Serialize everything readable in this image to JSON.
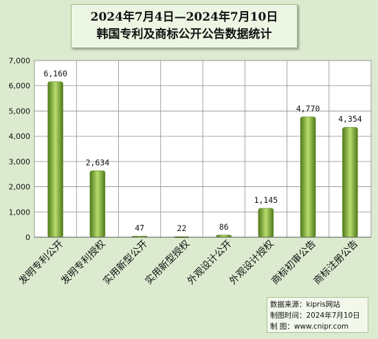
{
  "title_lines": [
    "2024年7月4日—2024年7月10日",
    "韩国专利及商标公开公告数据统计"
  ],
  "source": {
    "line1": "数据来源：kipris网站",
    "line2": "制图时间：2024年7月10日",
    "line3": "制    图：www.cnipr.com"
  },
  "colors": {
    "background": "#dcebcf",
    "plot_area": "#ffffff",
    "bar_dark": "#4f7a1b",
    "bar_light": "#b7dc6c"
  },
  "chart_data": {
    "type": "bar",
    "title": "2024年7月4日—2024年7月10日 韩国专利及商标公开公告数据统计",
    "categories": [
      "发明专利公开",
      "发明专利授权",
      "实用新型公开",
      "实用新型授权",
      "外观设计公开",
      "外观设计授权",
      "商标初审公告",
      "商标注册公告"
    ],
    "values": [
      6160,
      2634,
      47,
      22,
      86,
      1145,
      4770,
      4354
    ],
    "data_labels": [
      "6,160",
      "2,634",
      "47",
      "22",
      "86",
      "1,145",
      "4,770",
      "4,354"
    ],
    "y_ticks": [
      0,
      1000,
      2000,
      3000,
      4000,
      5000,
      6000,
      7000
    ],
    "y_tick_labels": [
      "0",
      "1,000",
      "2,000",
      "3,000",
      "4,000",
      "5,000",
      "6,000",
      "7,000"
    ],
    "ylim": [
      0,
      7000
    ],
    "xlabel": "",
    "ylabel": "",
    "grid": true
  }
}
